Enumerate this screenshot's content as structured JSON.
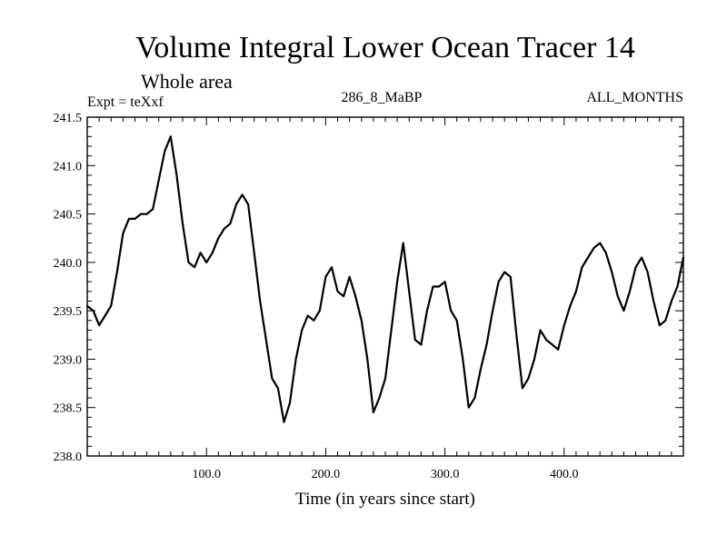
{
  "chart_data": {
    "type": "line",
    "title": "Volume Integral Lower Ocean Tracer 14",
    "subtitle": "Whole area",
    "annotations": {
      "left": "Expt = teXxf",
      "center": "286_8_MaBP",
      "right": "ALL_MONTHS"
    },
    "xlabel": "Time (in years since start)",
    "ylabel": "",
    "xlim": [
      0,
      500
    ],
    "ylim": [
      238.0,
      241.5
    ],
    "x_ticks": [
      100,
      200,
      300,
      400
    ],
    "x_tick_labels": [
      "100.0",
      "200.0",
      "300.0",
      "400.0"
    ],
    "y_ticks": [
      238.0,
      238.5,
      239.0,
      239.5,
      240.0,
      240.5,
      241.0,
      241.5
    ],
    "y_tick_labels": [
      "238.0",
      "238.5",
      "239.0",
      "239.5",
      "240.0",
      "240.5",
      "241.0",
      "241.5"
    ],
    "grid": false,
    "series": [
      {
        "name": "Lower Ocean Tracer 14",
        "x": [
          0,
          5,
          10,
          15,
          20,
          25,
          30,
          35,
          40,
          45,
          50,
          55,
          60,
          65,
          70,
          75,
          80,
          85,
          90,
          95,
          100,
          105,
          110,
          115,
          120,
          125,
          130,
          135,
          140,
          145,
          150,
          155,
          160,
          165,
          170,
          175,
          180,
          185,
          190,
          195,
          200,
          205,
          210,
          215,
          220,
          225,
          230,
          235,
          240,
          245,
          250,
          255,
          260,
          265,
          270,
          275,
          280,
          285,
          290,
          295,
          300,
          305,
          310,
          315,
          320,
          325,
          330,
          335,
          340,
          345,
          350,
          355,
          360,
          365,
          370,
          375,
          380,
          385,
          390,
          395,
          400,
          405,
          410,
          415,
          420,
          425,
          430,
          435,
          440,
          445,
          450,
          455,
          460,
          465,
          470,
          475,
          480,
          485,
          490,
          495,
          500
        ],
        "y": [
          239.55,
          239.5,
          239.35,
          239.45,
          239.55,
          239.9,
          240.3,
          240.45,
          240.45,
          240.5,
          240.5,
          240.55,
          240.85,
          241.15,
          241.3,
          240.9,
          240.4,
          240.0,
          239.95,
          240.1,
          240.0,
          240.1,
          240.25,
          240.35,
          240.4,
          240.6,
          240.7,
          240.6,
          240.1,
          239.6,
          239.2,
          238.8,
          238.7,
          238.35,
          238.55,
          239.0,
          239.3,
          239.45,
          239.4,
          239.5,
          239.85,
          239.95,
          239.7,
          239.65,
          239.85,
          239.65,
          239.4,
          239.0,
          238.45,
          238.6,
          238.8,
          239.3,
          239.8,
          240.2,
          239.7,
          239.2,
          239.15,
          239.5,
          239.75,
          239.75,
          239.8,
          239.5,
          239.4,
          239.0,
          238.5,
          238.6,
          238.9,
          239.15,
          239.5,
          239.8,
          239.9,
          239.85,
          239.25,
          238.7,
          238.8,
          239.0,
          239.3,
          239.2,
          239.15,
          239.1,
          239.35,
          239.55,
          239.7,
          239.95,
          240.05,
          240.15,
          240.2,
          240.1,
          239.9,
          239.65,
          239.5,
          239.7,
          239.95,
          240.05,
          239.9,
          239.6,
          239.35,
          239.4,
          239.6,
          239.75,
          240.05
        ]
      }
    ]
  }
}
